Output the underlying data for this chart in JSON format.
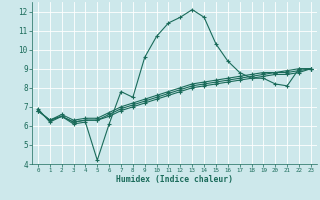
{
  "xlabel": "Humidex (Indice chaleur)",
  "bg_color": "#cde8eb",
  "grid_color": "#ffffff",
  "line_color": "#1a6b5a",
  "xlim": [
    -0.5,
    23.5
  ],
  "ylim": [
    4,
    12.5
  ],
  "xticks": [
    0,
    1,
    2,
    3,
    4,
    5,
    6,
    7,
    8,
    9,
    10,
    11,
    12,
    13,
    14,
    15,
    16,
    17,
    18,
    19,
    20,
    21,
    22,
    23
  ],
  "yticks": [
    4,
    5,
    6,
    7,
    8,
    9,
    10,
    11,
    12
  ],
  "curve1_x": [
    0,
    1,
    2,
    3,
    4,
    5,
    6,
    7,
    8,
    9,
    10,
    11,
    12,
    13,
    14,
    15,
    16,
    17,
    18,
    19,
    20,
    21,
    22,
    23
  ],
  "curve1_y": [
    6.9,
    6.2,
    6.5,
    6.1,
    6.2,
    4.2,
    6.1,
    7.8,
    7.5,
    9.6,
    10.7,
    11.4,
    11.7,
    12.1,
    11.7,
    10.3,
    9.4,
    8.8,
    8.5,
    8.5,
    8.2,
    8.1,
    9.0,
    9.0
  ],
  "curve2_x": [
    0,
    1,
    2,
    3,
    4,
    5,
    6,
    7,
    8,
    9,
    10,
    11,
    12,
    13,
    14,
    15,
    16,
    17,
    18,
    19,
    20,
    21,
    22,
    23
  ],
  "curve2_y": [
    6.8,
    6.3,
    6.5,
    6.2,
    6.3,
    6.3,
    6.5,
    6.8,
    7.0,
    7.2,
    7.4,
    7.6,
    7.8,
    8.0,
    8.1,
    8.2,
    8.3,
    8.4,
    8.5,
    8.6,
    8.7,
    8.7,
    8.8,
    9.0
  ],
  "curve3_x": [
    0,
    1,
    2,
    3,
    4,
    5,
    6,
    7,
    8,
    9,
    10,
    11,
    12,
    13,
    14,
    15,
    16,
    17,
    18,
    19,
    20,
    21,
    22,
    23
  ],
  "curve3_y": [
    6.8,
    6.3,
    6.5,
    6.2,
    6.3,
    6.3,
    6.6,
    6.9,
    7.1,
    7.3,
    7.5,
    7.7,
    7.9,
    8.1,
    8.2,
    8.3,
    8.4,
    8.5,
    8.6,
    8.7,
    8.8,
    8.8,
    8.9,
    9.0
  ],
  "curve4_x": [
    0,
    1,
    2,
    3,
    4,
    5,
    6,
    7,
    8,
    9,
    10,
    11,
    12,
    13,
    14,
    15,
    16,
    17,
    18,
    19,
    20,
    21,
    22,
    23
  ],
  "curve4_y": [
    6.8,
    6.3,
    6.6,
    6.3,
    6.4,
    6.4,
    6.7,
    7.0,
    7.2,
    7.4,
    7.6,
    7.8,
    8.0,
    8.2,
    8.3,
    8.4,
    8.5,
    8.6,
    8.7,
    8.8,
    8.8,
    8.9,
    9.0,
    9.0
  ]
}
